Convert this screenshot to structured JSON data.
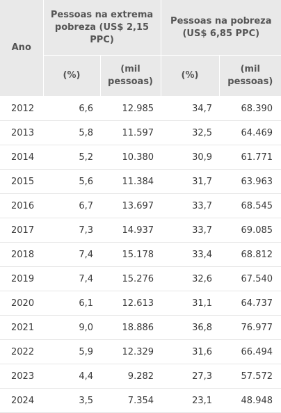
{
  "header": {
    "ano": "Ano",
    "group_extreme": "Pessoas na extrema pobreza (US$ 2,15 PPC)",
    "group_poverty": "Pessoas na pobreza (US$ 6,85 PPC)",
    "sub_percent_1": "(%)",
    "sub_thousand_1": "(mil pessoas)",
    "sub_percent_2": "(%)",
    "sub_thousand_2": "(mil pessoas)"
  },
  "rows": [
    {
      "year": "2012",
      "ext_pct": "6,6",
      "ext_mil": "12.985",
      "pov_pct": "34,7",
      "pov_mil": "68.390"
    },
    {
      "year": "2013",
      "ext_pct": "5,8",
      "ext_mil": "11.597",
      "pov_pct": "32,5",
      "pov_mil": "64.469"
    },
    {
      "year": "2014",
      "ext_pct": "5,2",
      "ext_mil": "10.380",
      "pov_pct": "30,9",
      "pov_mil": "61.771"
    },
    {
      "year": "2015",
      "ext_pct": "5,6",
      "ext_mil": "11.384",
      "pov_pct": "31,7",
      "pov_mil": "63.963"
    },
    {
      "year": "2016",
      "ext_pct": "6,7",
      "ext_mil": "13.697",
      "pov_pct": "33,7",
      "pov_mil": "68.545"
    },
    {
      "year": "2017",
      "ext_pct": "7,3",
      "ext_mil": "14.937",
      "pov_pct": "33,7",
      "pov_mil": "69.085"
    },
    {
      "year": "2018",
      "ext_pct": "7,4",
      "ext_mil": "15.178",
      "pov_pct": "33,4",
      "pov_mil": "68.812"
    },
    {
      "year": "2019",
      "ext_pct": "7,4",
      "ext_mil": "15.276",
      "pov_pct": "32,6",
      "pov_mil": "67.540"
    },
    {
      "year": "2020",
      "ext_pct": "6,1",
      "ext_mil": "12.613",
      "pov_pct": "31,1",
      "pov_mil": "64.737"
    },
    {
      "year": "2021",
      "ext_pct": "9,0",
      "ext_mil": "18.886",
      "pov_pct": "36,8",
      "pov_mil": "76.977"
    },
    {
      "year": "2022",
      "ext_pct": "5,9",
      "ext_mil": "12.329",
      "pov_pct": "31,6",
      "pov_mil": "66.494"
    },
    {
      "year": "2023",
      "ext_pct": "4,4",
      "ext_mil": "9.282",
      "pov_pct": "27,3",
      "pov_mil": "57.572"
    },
    {
      "year": "2024",
      "ext_pct": "3,5",
      "ext_mil": "7.354",
      "pov_pct": "23,1",
      "pov_mil": "48.948"
    }
  ]
}
